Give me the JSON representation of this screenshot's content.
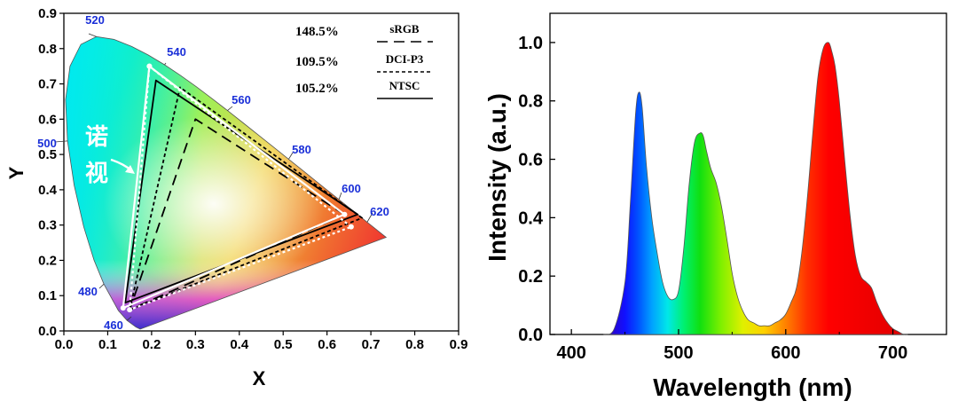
{
  "chart_data": [
    {
      "type": "scatter",
      "subtype": "cie-1931-chromaticity",
      "xlabel": "X",
      "ylabel": "Y",
      "xlim": [
        0.0,
        0.9
      ],
      "ylim": [
        0.0,
        0.9
      ],
      "xticks": [
        "0.0",
        "0.1",
        "0.2",
        "0.3",
        "0.4",
        "0.5",
        "0.6",
        "0.7",
        "0.8",
        "0.9"
      ],
      "yticks": [
        "0.0",
        "0.1",
        "0.2",
        "0.3",
        "0.4",
        "0.5",
        "0.6",
        "0.7",
        "0.8",
        "0.9"
      ],
      "wavelength_labels": [
        "460",
        "480",
        "500",
        "520",
        "540",
        "560",
        "580",
        "600",
        "620"
      ],
      "overlay_text": "诺视",
      "series": [
        {
          "name": "sRGB",
          "ratio": "148.5%",
          "style": "dashed",
          "points": [
            [
              0.64,
              0.33
            ],
            [
              0.3,
              0.6
            ],
            [
              0.15,
              0.06
            ]
          ]
        },
        {
          "name": "DCI-P3",
          "ratio": "109.5%",
          "style": "dotted",
          "points": [
            [
              0.68,
              0.32
            ],
            [
              0.265,
              0.69
            ],
            [
              0.15,
              0.06
            ]
          ]
        },
        {
          "name": "NTSC",
          "ratio": "105.2%",
          "style": "solid",
          "points": [
            [
              0.67,
              0.33
            ],
            [
              0.21,
              0.71
            ],
            [
              0.14,
              0.08
            ]
          ]
        },
        {
          "name": "",
          "style": "white-solid",
          "points": [
            [
              0.64,
              0.33
            ],
            [
              0.195,
              0.75
            ],
            [
              0.135,
              0.065
            ]
          ]
        },
        {
          "name": "",
          "style": "white-dotted",
          "points": [
            [
              0.655,
              0.295
            ],
            [
              0.195,
              0.75
            ],
            [
              0.15,
              0.06
            ]
          ]
        }
      ]
    },
    {
      "type": "area",
      "xlabel": "Wavelength (nm)",
      "ylabel": "Intensity (a.u.)",
      "xlim": [
        380,
        750
      ],
      "ylim": [
        0.0,
        1.1
      ],
      "xticks": [
        "400",
        "500",
        "600",
        "700"
      ],
      "yticks": [
        "0.0",
        "0.2",
        "0.4",
        "0.6",
        "0.8",
        "1.0"
      ],
      "spectrum": {
        "x": [
          430,
          440,
          450,
          455,
          460,
          463,
          466,
          470,
          475,
          480,
          485,
          490,
          495,
          500,
          505,
          510,
          515,
          520,
          523,
          526,
          530,
          535,
          540,
          545,
          550,
          555,
          560,
          565,
          570,
          575,
          580,
          585,
          590,
          595,
          600,
          605,
          610,
          615,
          620,
          625,
          630,
          635,
          640,
          643,
          646,
          650,
          655,
          660,
          665,
          670,
          675,
          680,
          685,
          690,
          695,
          700,
          705,
          710,
          714
        ],
        "y": [
          0.0,
          0.02,
          0.18,
          0.45,
          0.76,
          0.83,
          0.78,
          0.58,
          0.4,
          0.28,
          0.18,
          0.13,
          0.12,
          0.15,
          0.3,
          0.52,
          0.66,
          0.69,
          0.68,
          0.63,
          0.57,
          0.52,
          0.44,
          0.33,
          0.21,
          0.13,
          0.08,
          0.05,
          0.04,
          0.03,
          0.03,
          0.03,
          0.04,
          0.05,
          0.07,
          0.11,
          0.16,
          0.28,
          0.46,
          0.68,
          0.88,
          0.98,
          1.0,
          0.97,
          0.92,
          0.8,
          0.6,
          0.41,
          0.27,
          0.2,
          0.18,
          0.16,
          0.11,
          0.07,
          0.04,
          0.02,
          0.01,
          0.0,
          0.0
        ]
      }
    }
  ]
}
